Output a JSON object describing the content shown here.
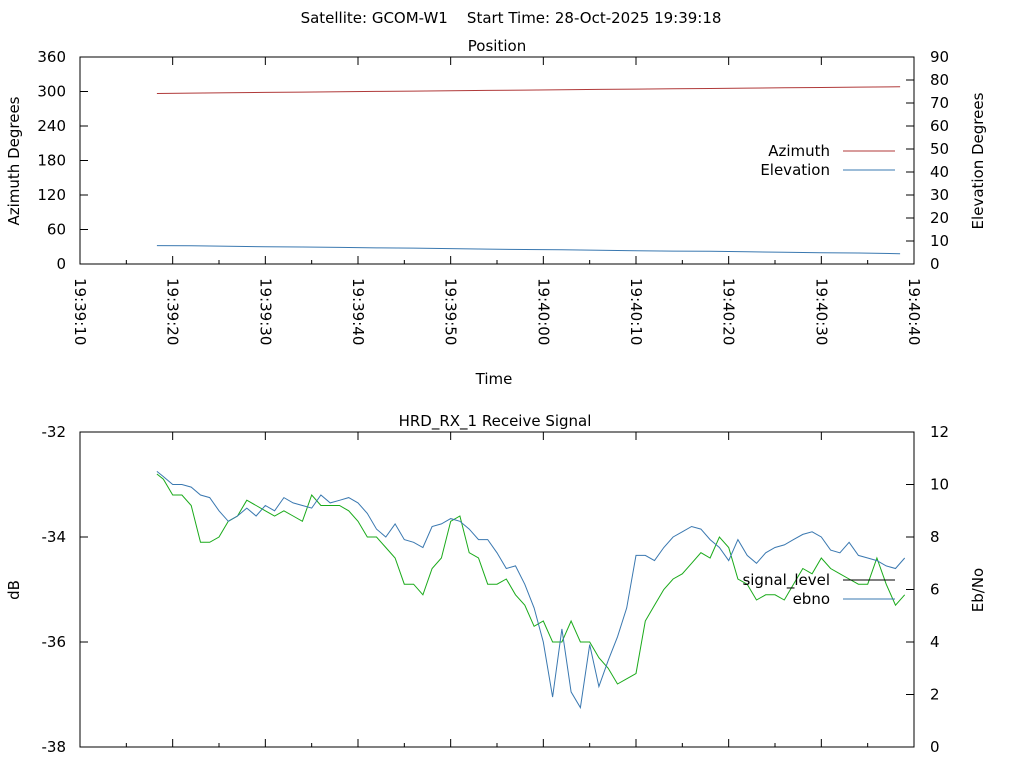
{
  "header": "Satellite: GCOM-W1    Start Time: 28-Oct-2025 19:39:18",
  "chart_data": [
    {
      "type": "line",
      "title": "Position",
      "xlabel": "Time",
      "ylabel": "Azimuth Degrees",
      "y2label": "Elevation Degrees",
      "x_ticks": [
        "19:39:10",
        "19:39:20",
        "19:39:30",
        "19:39:40",
        "19:39:50",
        "19:40:00",
        "19:40:10",
        "19:40:20",
        "19:40:30",
        "19:40:40"
      ],
      "xlim_seconds": [
        0,
        90
      ],
      "ylim": [
        0,
        360
      ],
      "y_ticks": [
        0,
        60,
        120,
        180,
        240,
        300,
        360
      ],
      "y2lim": [
        0,
        90
      ],
      "y2_ticks": [
        0,
        10,
        20,
        30,
        40,
        50,
        60,
        70,
        80,
        90
      ],
      "legend_position": "right",
      "series": [
        {
          "name": "Azimuth",
          "axis": "y",
          "color": "#b03a3a",
          "x": [
            8.3,
            12,
            16,
            20,
            24,
            28,
            32,
            36,
            40,
            44,
            48,
            52,
            56,
            60,
            64,
            68,
            72,
            76,
            80,
            84,
            88.5
          ],
          "y": [
            296.5,
            297.2,
            297.9,
            298.4,
            299.0,
            299.6,
            300.2,
            300.7,
            301.3,
            301.9,
            302.5,
            303.0,
            303.6,
            304.2,
            304.8,
            305.3,
            305.9,
            306.5,
            307.0,
            307.6,
            308.2
          ]
        },
        {
          "name": "Elevation",
          "axis": "y2",
          "color": "#3a78b0",
          "x": [
            8.3,
            12,
            16,
            20,
            24,
            28,
            32,
            36,
            40,
            44,
            48,
            52,
            56,
            60,
            64,
            68,
            72,
            76,
            80,
            84,
            88.5
          ],
          "y": [
            8.0,
            7.9,
            7.7,
            7.5,
            7.4,
            7.2,
            7.0,
            6.9,
            6.7,
            6.5,
            6.3,
            6.2,
            6.0,
            5.8,
            5.6,
            5.5,
            5.3,
            5.1,
            4.9,
            4.8,
            4.5
          ]
        }
      ]
    },
    {
      "type": "line",
      "title": "HRD_RX_1 Receive Signal",
      "xlabel": "",
      "ylabel": "dB",
      "y2label": "Eb/No",
      "xlim_seconds": [
        0,
        90
      ],
      "ylim": [
        -38,
        -32
      ],
      "y_ticks": [
        -38,
        -36,
        -34,
        -32
      ],
      "y2lim": [
        0,
        12
      ],
      "y2_ticks": [
        0,
        2,
        4,
        6,
        8,
        10,
        12
      ],
      "legend_position": "right",
      "series": [
        {
          "name": "signal_level",
          "axis": "y",
          "color": "#000000",
          "x": [],
          "y": []
        },
        {
          "name": "signal_level",
          "axis": "y",
          "color": "#1aaa1a",
          "x": [
            8.3,
            9,
            10,
            11,
            12,
            13,
            14,
            15,
            16,
            17,
            18,
            19,
            20,
            21,
            22,
            23,
            24,
            25,
            26,
            27,
            28,
            29,
            30,
            31,
            32,
            33,
            34,
            35,
            36,
            37,
            38,
            39,
            40,
            41,
            42,
            43,
            44,
            45,
            46,
            47,
            48,
            49,
            50,
            51,
            52,
            53,
            54,
            55,
            56,
            57,
            58,
            59,
            60,
            61,
            62,
            63,
            64,
            65,
            66,
            67,
            68,
            69,
            70,
            71,
            72,
            73,
            74,
            75,
            76,
            77,
            78,
            79,
            80,
            81,
            82,
            83,
            84,
            85,
            86,
            87,
            88,
            89
          ],
          "y": [
            -32.8,
            -32.9,
            -33.2,
            -33.2,
            -33.4,
            -34.1,
            -34.1,
            -34.0,
            -33.7,
            -33.6,
            -33.3,
            -33.4,
            -33.5,
            -33.6,
            -33.5,
            -33.6,
            -33.7,
            -33.2,
            -33.4,
            -33.4,
            -33.4,
            -33.5,
            -33.7,
            -34.0,
            -34.0,
            -34.2,
            -34.4,
            -34.9,
            -34.9,
            -35.1,
            -34.6,
            -34.4,
            -33.7,
            -33.6,
            -34.3,
            -34.4,
            -34.9,
            -34.9,
            -34.8,
            -35.1,
            -35.3,
            -35.7,
            -35.6,
            -36.0,
            -36.0,
            -35.6,
            -36.0,
            -36.0,
            -36.3,
            -36.5,
            -36.8,
            -36.7,
            -36.6,
            -35.6,
            -35.3,
            -35.0,
            -34.8,
            -34.7,
            -34.5,
            -34.3,
            -34.4,
            -34.0,
            -34.2,
            -34.8,
            -34.9,
            -35.2,
            -35.1,
            -35.1,
            -35.2,
            -34.9,
            -34.6,
            -34.7,
            -34.4,
            -34.6,
            -34.7,
            -34.8,
            -34.9,
            -34.9,
            -34.4,
            -34.9,
            -35.3,
            -35.1
          ]
        },
        {
          "name": "ebno",
          "axis": "y2",
          "color": "#3a78b0",
          "x": [
            8.3,
            9,
            10,
            11,
            12,
            13,
            14,
            15,
            16,
            17,
            18,
            19,
            20,
            21,
            22,
            23,
            24,
            25,
            26,
            27,
            28,
            29,
            30,
            31,
            32,
            33,
            34,
            35,
            36,
            37,
            38,
            39,
            40,
            41,
            42,
            43,
            44,
            45,
            46,
            47,
            48,
            49,
            50,
            51,
            52,
            53,
            54,
            55,
            56,
            57,
            58,
            59,
            60,
            61,
            62,
            63,
            64,
            65,
            66,
            67,
            68,
            69,
            70,
            71,
            72,
            73,
            74,
            75,
            76,
            77,
            78,
            79,
            80,
            81,
            82,
            83,
            84,
            85,
            86,
            87,
            88,
            89
          ],
          "y": [
            10.5,
            10.3,
            10.0,
            10.0,
            9.9,
            9.6,
            9.5,
            9.0,
            8.6,
            8.8,
            9.1,
            8.8,
            9.2,
            9.0,
            9.5,
            9.3,
            9.2,
            9.1,
            9.6,
            9.3,
            9.4,
            9.5,
            9.3,
            8.9,
            8.3,
            8.0,
            8.5,
            7.9,
            7.8,
            7.6,
            8.4,
            8.5,
            8.7,
            8.6,
            8.3,
            7.9,
            7.9,
            7.4,
            6.8,
            6.9,
            6.2,
            5.3,
            4.0,
            1.9,
            4.5,
            2.1,
            1.5,
            3.9,
            2.3,
            3.3,
            4.2,
            5.3,
            7.3,
            7.3,
            7.1,
            7.6,
            8.0,
            8.2,
            8.4,
            8.3,
            7.9,
            7.6,
            7.1,
            7.9,
            7.3,
            7.0,
            7.4,
            7.6,
            7.7,
            7.9,
            8.1,
            8.2,
            8.0,
            7.5,
            7.4,
            7.8,
            7.3,
            7.2,
            7.1,
            6.9,
            6.8,
            7.2
          ]
        }
      ]
    }
  ]
}
